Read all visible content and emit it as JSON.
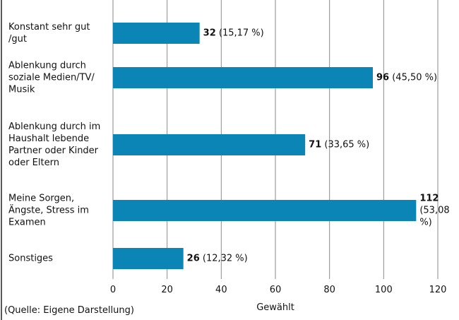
{
  "chart_data": {
    "type": "bar",
    "orientation": "horizontal",
    "categories": [
      "Konstant sehr gut /gut",
      "Ablenkung durch soziale Medien/TV/ Musik",
      "Ablenkung durch im Haushalt lebende Partner oder Kinder oder Eltern",
      "Meine Sorgen, Ängste, Stress im Examen",
      "Sonstiges"
    ],
    "values": [
      32,
      96,
      71,
      112,
      26
    ],
    "percent_labels": [
      "(15,17 %)",
      "(45,50 %)",
      "(33,65 %)",
      "(53,08 %)",
      "(12,32 %)"
    ],
    "color": "#0a85b5",
    "xlim": [
      0,
      120
    ],
    "xticks": [
      0,
      20,
      40,
      60,
      80,
      100,
      120
    ],
    "xlabel": "Gewählt",
    "grid": true,
    "source": "(Quelle: Eigene Darstellung)"
  }
}
